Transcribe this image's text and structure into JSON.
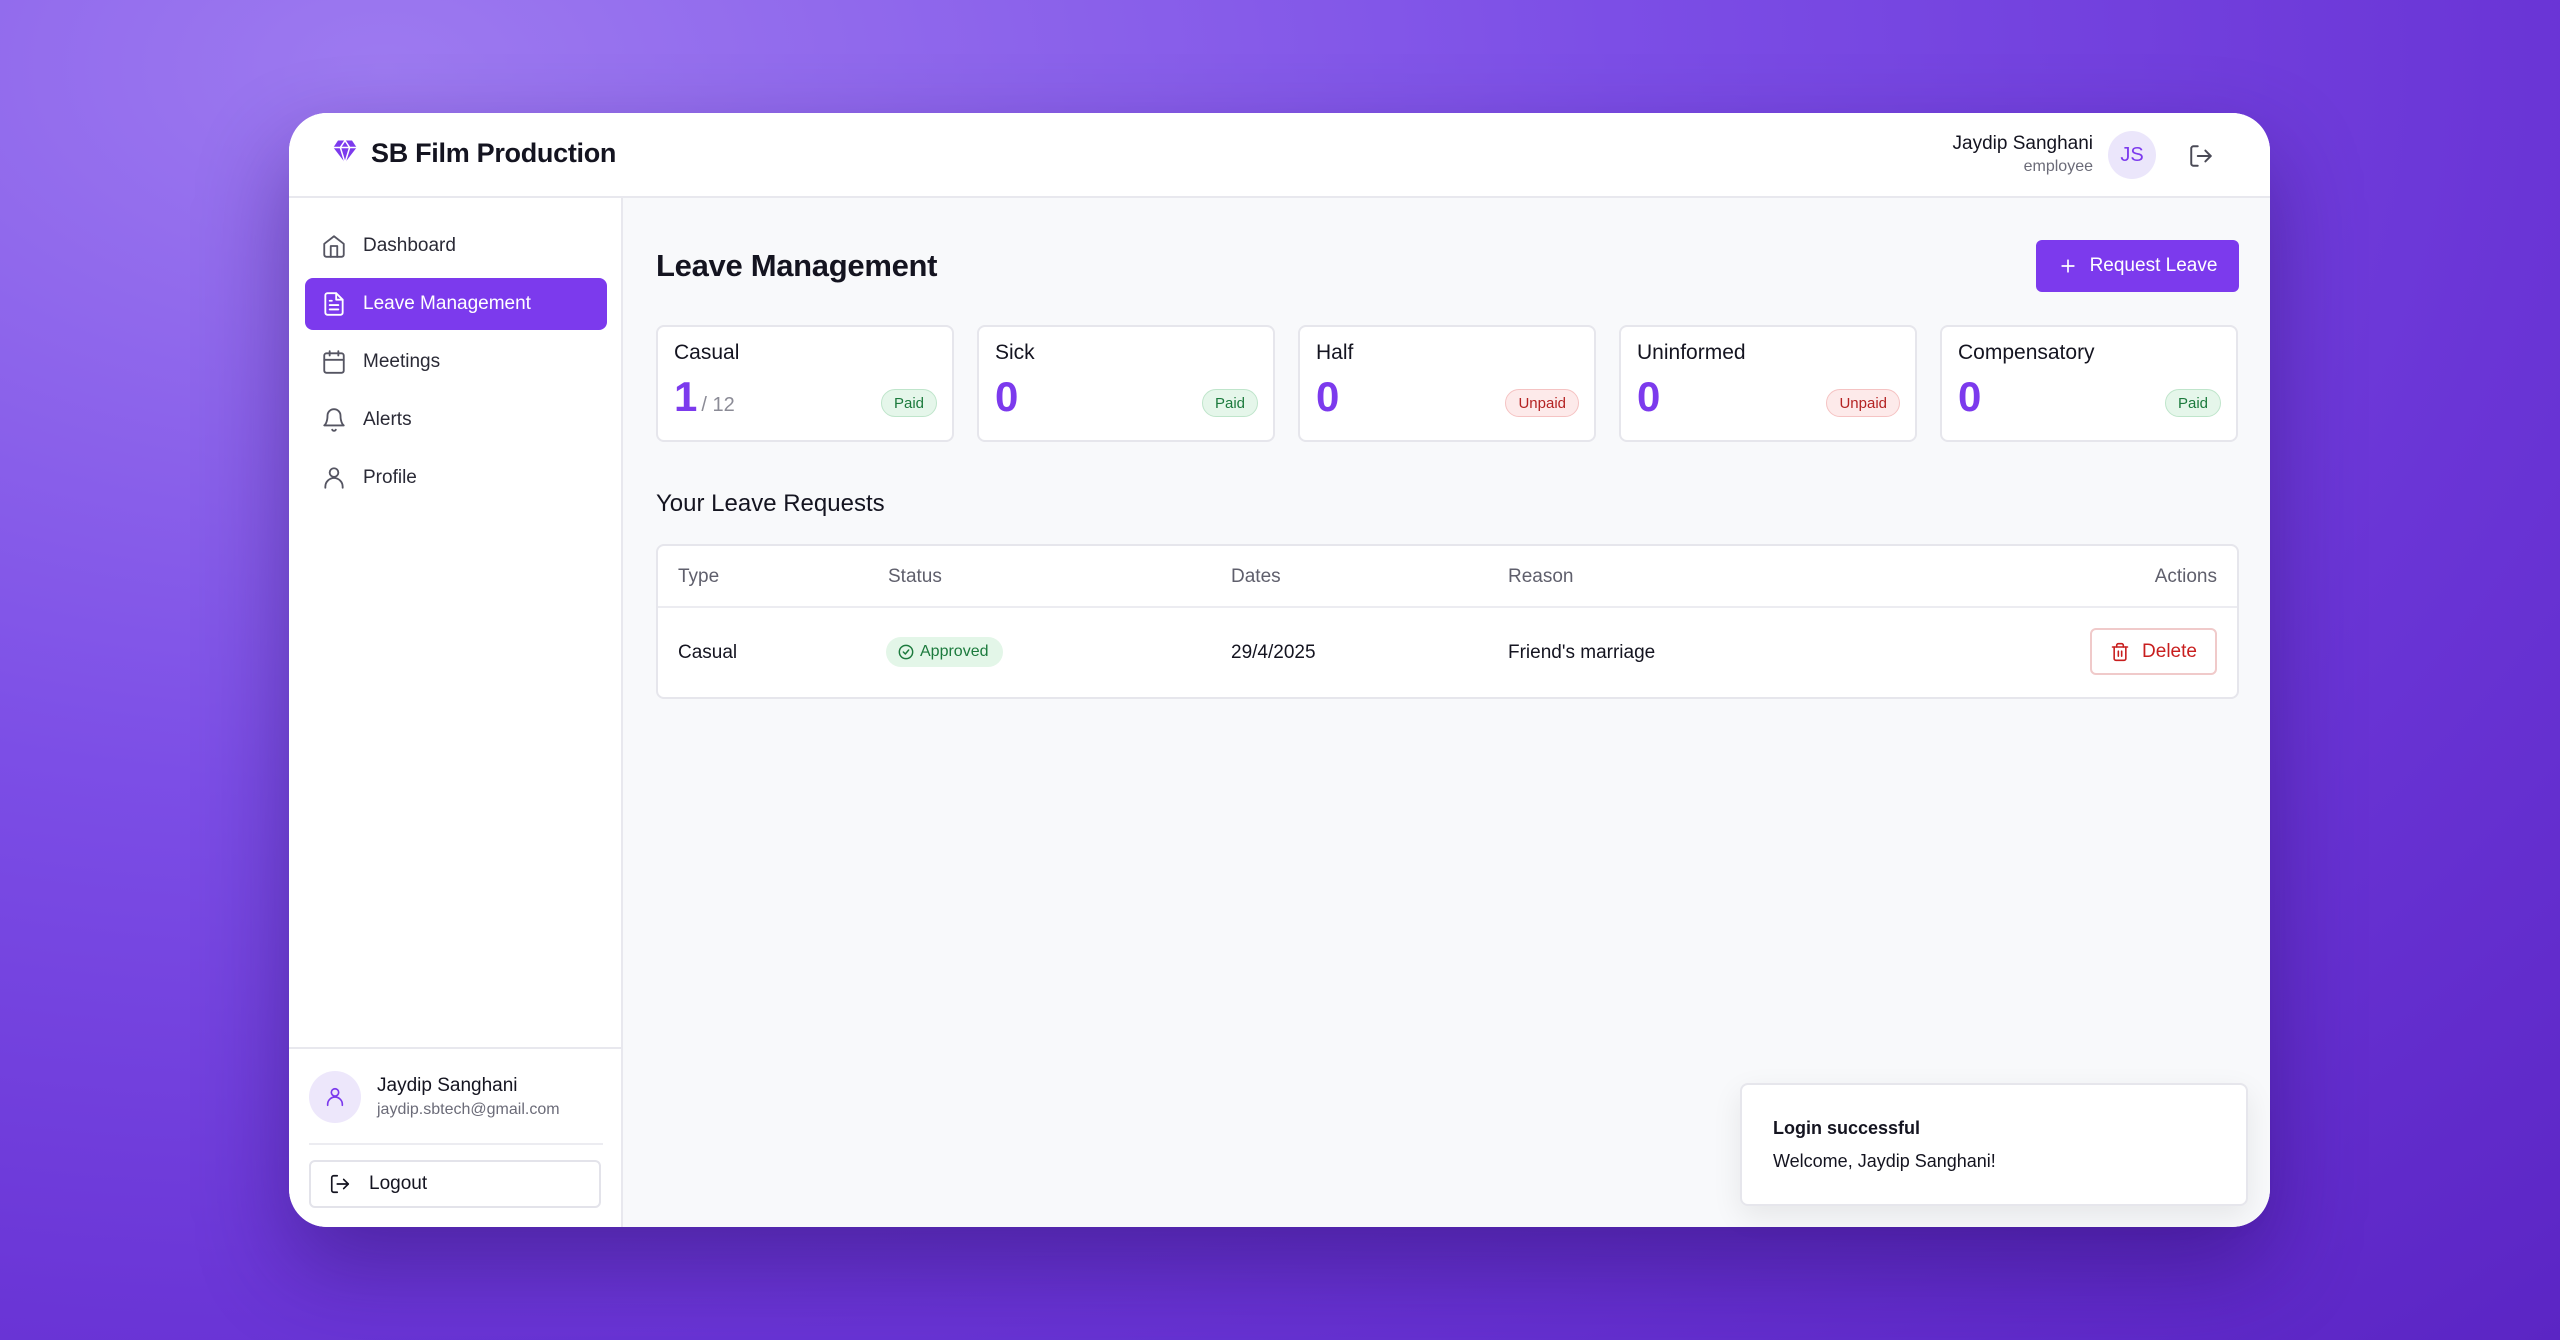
{
  "brand": {
    "name": "SB Film Production"
  },
  "user": {
    "name": "Jaydip Sanghani",
    "role": "employee",
    "initials": "JS",
    "email": "jaydip.sbtech@gmail.com"
  },
  "sidebar": {
    "items": [
      {
        "label": "Dashboard",
        "icon": "home-icon",
        "active": false
      },
      {
        "label": "Leave Management",
        "icon": "document-icon",
        "active": true
      },
      {
        "label": "Meetings",
        "icon": "calendar-icon",
        "active": false
      },
      {
        "label": "Alerts",
        "icon": "bell-icon",
        "active": false
      },
      {
        "label": "Profile",
        "icon": "user-icon",
        "active": false
      }
    ],
    "logout_label": "Logout"
  },
  "main": {
    "title": "Leave Management",
    "request_button": "Request Leave",
    "cards": [
      {
        "title": "Casual",
        "value": "1",
        "total": "/ 12",
        "badge": "Paid"
      },
      {
        "title": "Sick",
        "value": "0",
        "total": "",
        "badge": "Paid"
      },
      {
        "title": "Half",
        "value": "0",
        "total": "",
        "badge": "Unpaid"
      },
      {
        "title": "Uninformed",
        "value": "0",
        "total": "",
        "badge": "Unpaid"
      },
      {
        "title": "Compensatory",
        "value": "0",
        "total": "",
        "badge": "Paid"
      }
    ],
    "requests_title": "Your Leave Requests",
    "table": {
      "headers": {
        "type": "Type",
        "status": "Status",
        "dates": "Dates",
        "reason": "Reason",
        "actions": "Actions"
      },
      "rows": [
        {
          "type": "Casual",
          "status": "Approved",
          "dates": "29/4/2025",
          "reason": "Friend's marriage",
          "action": "Delete"
        }
      ]
    }
  },
  "toast": {
    "title": "Login successful",
    "message": "Welcome, Jaydip Sanghani!"
  },
  "colors": {
    "accent": "#7c3aed",
    "paid": "#1c7a3d",
    "unpaid": "#b42323"
  }
}
